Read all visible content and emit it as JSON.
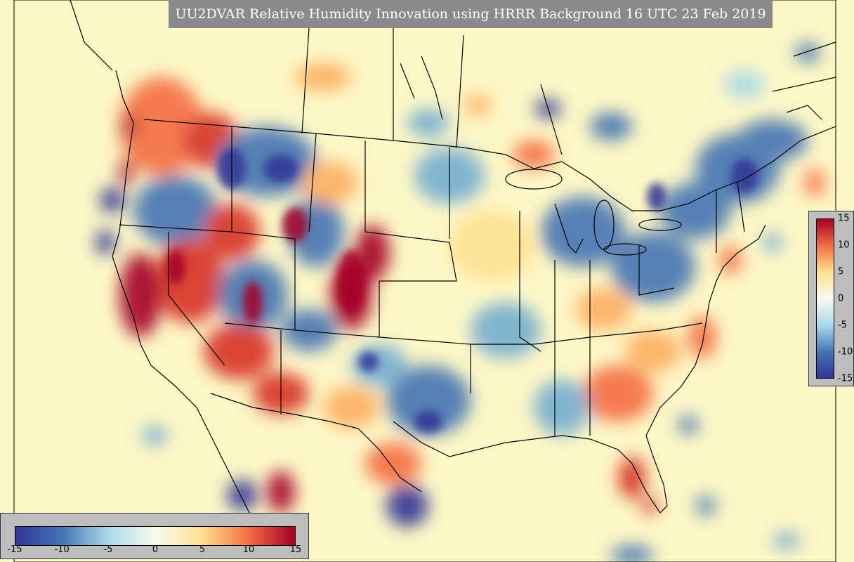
{
  "title": "UU2DVAR Relative Humidity Innovation using HRRR Background 16 UTC 23 Feb 2019",
  "colorbar": {
    "min": -15,
    "max": 15,
    "vertical_ticks": [
      "15",
      "10",
      "5",
      "0",
      "-5",
      "-10",
      "-15"
    ],
    "horizontal_ticks": [
      "-15",
      "-10",
      "-5",
      "0",
      "5",
      "10",
      "15"
    ],
    "colors": {
      "dark_blue": "#313695",
      "mid_blue": "#4575b4",
      "light_blue": "#abd9e9",
      "near_zero": "#f7fbef",
      "light_yellow": "#fee090",
      "orange": "#f46d43",
      "dark_red": "#a50026"
    }
  },
  "map": {
    "background": "#fdf7c6",
    "border_color": "#000000"
  }
}
